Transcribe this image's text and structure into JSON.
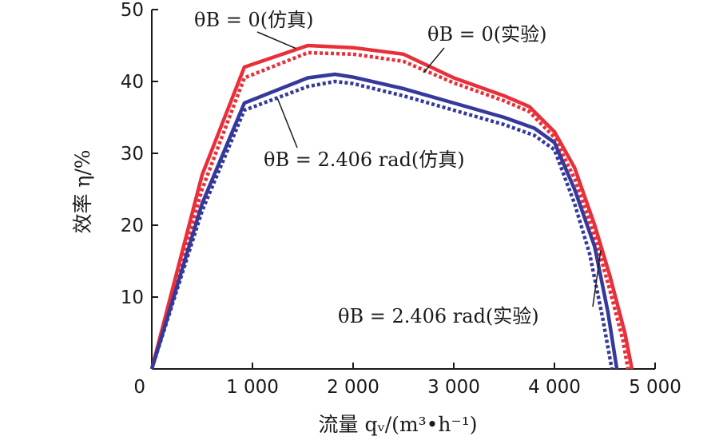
{
  "chart_data": {
    "type": "line",
    "xlabel": "流量 qᵥ/(m³•h⁻¹)",
    "ylabel": "效率 η/%",
    "xlim": [
      0,
      5000
    ],
    "ylim": [
      0,
      50
    ],
    "x_ticks": [
      0,
      1000,
      2000,
      3000,
      4000,
      5000
    ],
    "x_tick_labels": [
      "0",
      "1 000",
      "2 000",
      "3 000",
      "4 000",
      "5 000"
    ],
    "y_ticks": [
      10,
      20,
      30,
      40,
      50
    ],
    "y_tick_labels": [
      "10",
      "20",
      "30",
      "40",
      "50"
    ],
    "grid": false,
    "colors": {
      "red": "#e8303a",
      "blue": "#35399a"
    },
    "series": [
      {
        "name": "θB = 0(仿真)",
        "color": "#e8303a",
        "style": "solid",
        "points": [
          [
            0,
            0
          ],
          [
            500,
            27
          ],
          [
            920,
            42
          ],
          [
            1550,
            45
          ],
          [
            2000,
            44.7
          ],
          [
            2500,
            43.8
          ],
          [
            3000,
            40.5
          ],
          [
            3500,
            38
          ],
          [
            3750,
            36.5
          ],
          [
            4000,
            33
          ],
          [
            4200,
            28
          ],
          [
            4400,
            20
          ],
          [
            4550,
            13
          ],
          [
            4700,
            5
          ],
          [
            4770,
            0
          ]
        ]
      },
      {
        "name": "θB = 0(实验)",
        "color": "#e8303a",
        "style": "dotted",
        "points": [
          [
            0,
            0
          ],
          [
            500,
            25
          ],
          [
            920,
            40.5
          ],
          [
            1550,
            44
          ],
          [
            2000,
            43.8
          ],
          [
            2500,
            42.8
          ],
          [
            3000,
            39.8
          ],
          [
            3500,
            37.3
          ],
          [
            3750,
            35.8
          ],
          [
            4000,
            32.2
          ],
          [
            4200,
            26.5
          ],
          [
            4400,
            18.5
          ],
          [
            4550,
            11
          ],
          [
            4680,
            4
          ],
          [
            4730,
            0
          ]
        ]
      },
      {
        "name": "θB = 2.406 rad(仿真)",
        "color": "#35399a",
        "style": "solid",
        "points": [
          [
            0,
            0
          ],
          [
            500,
            23
          ],
          [
            920,
            37
          ],
          [
            1550,
            40.5
          ],
          [
            1820,
            41
          ],
          [
            2000,
            40.6
          ],
          [
            2500,
            39
          ],
          [
            3000,
            37
          ],
          [
            3500,
            35
          ],
          [
            3800,
            33.5
          ],
          [
            4000,
            31.5
          ],
          [
            4200,
            25
          ],
          [
            4400,
            17
          ],
          [
            4530,
            8
          ],
          [
            4620,
            0
          ]
        ]
      },
      {
        "name": "θB = 2.406 rad(实验)",
        "color": "#35399a",
        "style": "dotted",
        "points": [
          [
            0,
            0
          ],
          [
            500,
            22
          ],
          [
            920,
            36
          ],
          [
            1550,
            39.3
          ],
          [
            1820,
            40
          ],
          [
            2000,
            39.7
          ],
          [
            2500,
            38
          ],
          [
            3000,
            36
          ],
          [
            3500,
            34
          ],
          [
            3800,
            32.5
          ],
          [
            4000,
            30.5
          ],
          [
            4200,
            23
          ],
          [
            4350,
            16
          ],
          [
            4480,
            7
          ],
          [
            4570,
            0
          ]
        ]
      }
    ],
    "annotations": [
      {
        "label": "θB = 0(仿真)",
        "target": [
          1430,
          44.6
        ]
      },
      {
        "label": "θB = 0(实验)",
        "target": [
          2700,
          41.2
        ]
      },
      {
        "label": "θB = 2.406 rad(仿真)",
        "target": [
          1250,
          37.6
        ]
      },
      {
        "label": "θB = 2.406 rad(实验)",
        "target": [
          4460,
          16.5
        ]
      }
    ]
  }
}
